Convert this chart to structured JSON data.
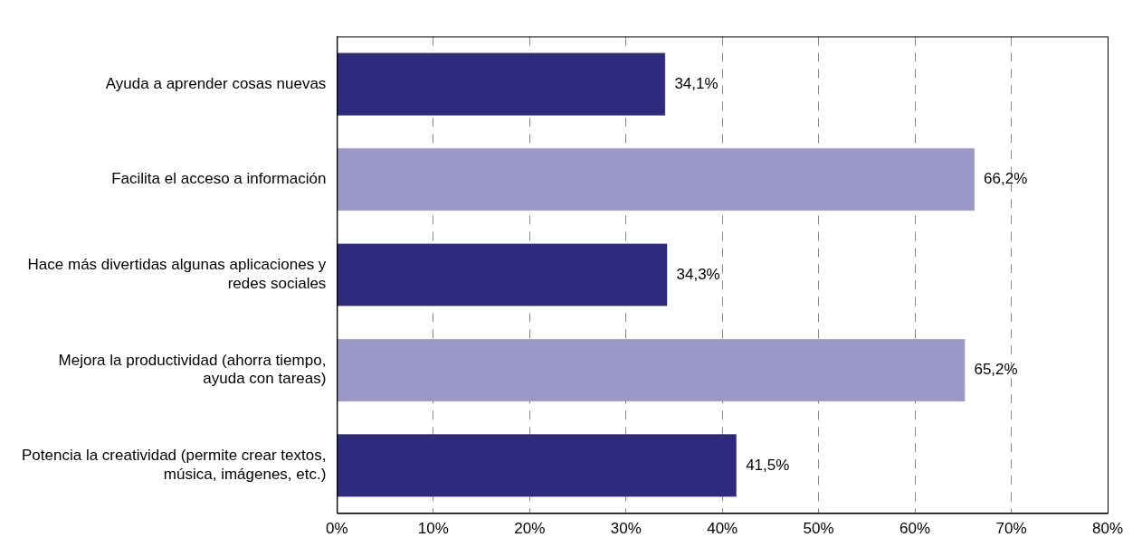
{
  "chart_data": {
    "type": "bar",
    "orientation": "horizontal",
    "categories": [
      "Ayuda a aprender cosas nuevas",
      "Facilita el acceso a información",
      "Hace más divertidas algunas aplicaciones y redes sociales",
      "Mejora la productividad (ahorra tiempo, ayuda con tareas)",
      "Potencia la creatividad (permite crear textos, música, imágenes, etc.)"
    ],
    "values": [
      34.1,
      66.2,
      34.3,
      65.2,
      41.5
    ],
    "colors": [
      "#2e2a7e",
      "#9b98c8",
      "#2e2a7e",
      "#9b98c8",
      "#2e2a7e"
    ],
    "value_labels": [
      "34,1%",
      "66,2%",
      "34,3%",
      "65,2%",
      "41,5%"
    ],
    "xlim": [
      0,
      80
    ],
    "xticks": [
      {
        "value": 0,
        "label": "0%"
      },
      {
        "value": 10,
        "label": "10%"
      },
      {
        "value": 20,
        "label": "20%"
      },
      {
        "value": 30,
        "label": "30%"
      },
      {
        "value": 40,
        "label": "40%"
      },
      {
        "value": 50,
        "label": "50%"
      },
      {
        "value": 60,
        "label": "60%"
      },
      {
        "value": 70,
        "label": "70%"
      },
      {
        "value": 80,
        "label": "80%"
      }
    ],
    "grid": "x",
    "legend": false
  }
}
